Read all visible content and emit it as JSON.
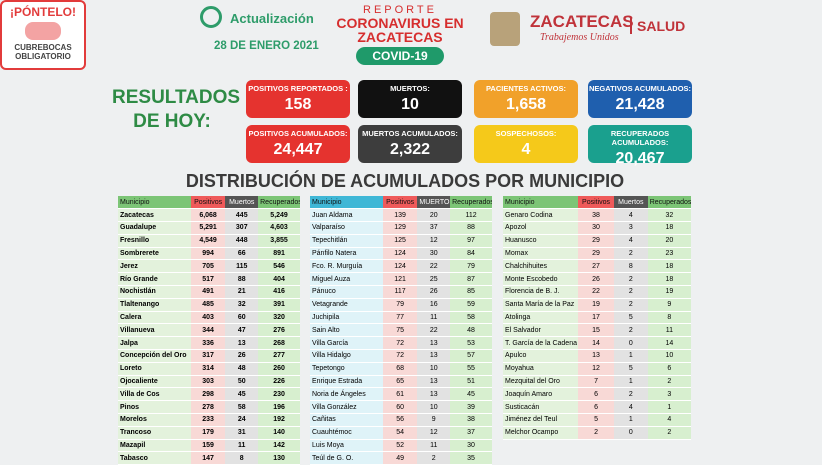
{
  "header": {
    "badge_top": "¡PÓNTELO!",
    "badge_bottom": "CUBREBOCAS OBLIGATORIO",
    "update_label": "Actualización",
    "date": "28 DE ENERO 2021",
    "report": "REPORTE",
    "report_title": "CORONAVIRUS EN ZACATECAS",
    "covid": "COVID-19",
    "state": "ZACATECAS",
    "slogan": "Trabajemos Unidos",
    "salud": "SALUD"
  },
  "summary": {
    "title": "RESULTADOS DE HOY:",
    "cards": [
      {
        "label": "POSITIVOS REPORTADOS :",
        "value": "158"
      },
      {
        "label": "MUERTOS:",
        "value": "10"
      },
      {
        "label": "PACIENTES ACTIVOS:",
        "value": "1,658"
      },
      {
        "label": "NEGATIVOS ACUMULADOS:",
        "value": "21,428"
      },
      {
        "label": "POSITIVOS ACUMULADOS:",
        "value": "24,447"
      },
      {
        "label": "MUERTOS ACUMULADOS:",
        "value": "2,322"
      },
      {
        "label": "SOSPECHOSOS:",
        "value": "4"
      },
      {
        "label": "RECUPERADOS ACUMULADOS:",
        "value": "20,467"
      }
    ]
  },
  "section_title": "DISTRIBUCIÓN DE ACUMULADOS POR MUNICIPIO",
  "tables": [
    {
      "columns": [
        "Municipio",
        "Positivos",
        "Muertos",
        "Recuperados"
      ],
      "rows": [
        [
          "Zacatecas",
          "6,068",
          "445",
          "5,249"
        ],
        [
          "Guadalupe",
          "5,291",
          "307",
          "4,603"
        ],
        [
          "Fresnillo",
          "4,549",
          "448",
          "3,855"
        ],
        [
          "Sombrerete",
          "994",
          "66",
          "891"
        ],
        [
          "Jerez",
          "705",
          "115",
          "546"
        ],
        [
          "Río Grande",
          "517",
          "88",
          "404"
        ],
        [
          "Nochistlán",
          "491",
          "21",
          "416"
        ],
        [
          "Tlaltenango",
          "485",
          "32",
          "391"
        ],
        [
          "Calera",
          "403",
          "60",
          "320"
        ],
        [
          "Villanueva",
          "344",
          "47",
          "276"
        ],
        [
          "Jalpa",
          "336",
          "13",
          "268"
        ],
        [
          "Concepción del Oro",
          "317",
          "26",
          "277"
        ],
        [
          "Loreto",
          "314",
          "48",
          "260"
        ],
        [
          "Ojocaliente",
          "303",
          "50",
          "226"
        ],
        [
          "Villa de Cos",
          "298",
          "45",
          "230"
        ],
        [
          "Pinos",
          "278",
          "58",
          "196"
        ],
        [
          "Morelos",
          "233",
          "24",
          "192"
        ],
        [
          "Trancoso",
          "179",
          "31",
          "140"
        ],
        [
          "Mazapil",
          "159",
          "11",
          "142"
        ],
        [
          "Tabasco",
          "147",
          "8",
          "130"
        ]
      ]
    },
    {
      "columns": [
        "Municipio",
        "Positivos",
        "MUERTOS",
        "Recuperados"
      ],
      "rows": [
        [
          "Juan Aldama",
          "139",
          "20",
          "112"
        ],
        [
          "Valparaíso",
          "129",
          "37",
          "88"
        ],
        [
          "Tepechitlán",
          "125",
          "12",
          "97"
        ],
        [
          "Pánfilo Natera",
          "124",
          "30",
          "84"
        ],
        [
          "Fco. R. Murguía",
          "124",
          "22",
          "79"
        ],
        [
          "Miguel Auza",
          "121",
          "25",
          "87"
        ],
        [
          "Pánuco",
          "117",
          "26",
          "85"
        ],
        [
          "Vetagrande",
          "79",
          "16",
          "59"
        ],
        [
          "Juchipila",
          "77",
          "11",
          "58"
        ],
        [
          "Sain Alto",
          "75",
          "22",
          "48"
        ],
        [
          "Villa García",
          "72",
          "13",
          "53"
        ],
        [
          "Villa Hidalgo",
          "72",
          "13",
          "57"
        ],
        [
          "Tepetongo",
          "68",
          "10",
          "55"
        ],
        [
          "Enrique Estrada",
          "65",
          "13",
          "51"
        ],
        [
          "Noria de Ángeles",
          "61",
          "13",
          "45"
        ],
        [
          "Villa González",
          "60",
          "10",
          "39"
        ],
        [
          "Cañitas",
          "56",
          "9",
          "38"
        ],
        [
          "Cuauhtémoc",
          "54",
          "12",
          "37"
        ],
        [
          "Luis Moya",
          "52",
          "11",
          "30"
        ],
        [
          "Teúl de G. O.",
          "49",
          "2",
          "35"
        ]
      ]
    },
    {
      "columns": [
        "Municipio",
        "Positivos",
        "Muertos",
        "Recuperados"
      ],
      "rows": [
        [
          "Genaro Codina",
          "38",
          "4",
          "32"
        ],
        [
          "Apozol",
          "30",
          "3",
          "18"
        ],
        [
          "Huanusco",
          "29",
          "4",
          "20"
        ],
        [
          "Momax",
          "29",
          "2",
          "23"
        ],
        [
          "Chalchihuites",
          "27",
          "8",
          "18"
        ],
        [
          "Monte Escobedo",
          "26",
          "2",
          "18"
        ],
        [
          "Florencia de B. J.",
          "22",
          "2",
          "19"
        ],
        [
          "Santa María de la Paz",
          "19",
          "2",
          "9"
        ],
        [
          "Atolinga",
          "17",
          "5",
          "8"
        ],
        [
          "El Salvador",
          "15",
          "2",
          "11"
        ],
        [
          "T. García de la Cadena",
          "14",
          "0",
          "14"
        ],
        [
          "Apulco",
          "13",
          "1",
          "10"
        ],
        [
          "Moyahua",
          "12",
          "5",
          "6"
        ],
        [
          "Mezquital del Oro",
          "7",
          "1",
          "2"
        ],
        [
          "Joaquín Amaro",
          "6",
          "2",
          "3"
        ],
        [
          "Susticacán",
          "6",
          "4",
          "1"
        ],
        [
          "Jiménez del Teul",
          "5",
          "1",
          "4"
        ],
        [
          "Melchor Ocampo",
          "2",
          "0",
          "2"
        ]
      ]
    }
  ]
}
